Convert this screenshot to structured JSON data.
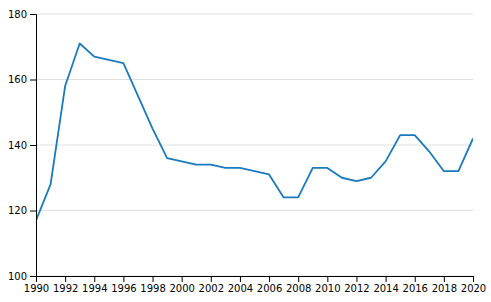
{
  "chart_data": {
    "type": "line",
    "x": [
      1990,
      1991,
      1992,
      1993,
      1994,
      1995,
      1996,
      1997,
      1998,
      1999,
      2000,
      2001,
      2002,
      2003,
      2004,
      2005,
      2006,
      2007,
      2008,
      2009,
      2010,
      2011,
      2012,
      2013,
      2014,
      2015,
      2016,
      2017,
      2018,
      2019,
      2020
    ],
    "values": [
      117,
      128,
      158,
      171,
      167,
      166,
      165,
      155,
      145,
      136,
      135,
      134,
      134,
      133,
      133,
      132,
      131,
      124,
      124,
      133,
      133,
      130,
      129,
      130,
      135,
      143,
      143,
      138,
      132,
      132,
      142
    ],
    "color": "#1a7abf",
    "xlim": [
      1990,
      2020
    ],
    "ylim": [
      100,
      180
    ],
    "xticks": [
      1990,
      1992,
      1994,
      1996,
      1998,
      2000,
      2002,
      2004,
      2006,
      2008,
      2010,
      2012,
      2014,
      2016,
      2018,
      2020
    ],
    "yticks": [
      100,
      120,
      140,
      160,
      180
    ],
    "grid": true
  }
}
